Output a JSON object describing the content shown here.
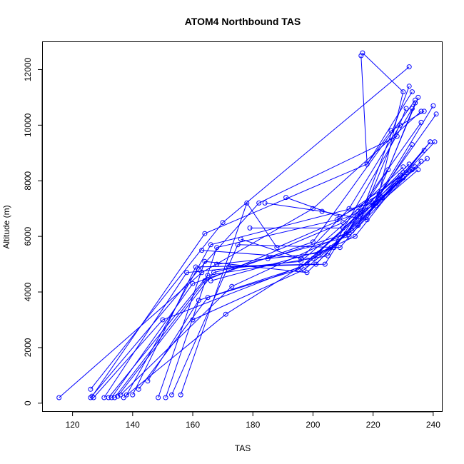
{
  "chart_data": {
    "type": "line",
    "title": "ATOM4 Northbound TAS",
    "xlabel": "TAS",
    "ylabel": "Altitude (m)",
    "xlim": [
      110,
      243
    ],
    "ylim": [
      -300,
      13000
    ],
    "xticks": [
      120,
      140,
      160,
      180,
      200,
      220,
      240
    ],
    "yticks": [
      0,
      2000,
      4000,
      6000,
      8000,
      10000,
      12000
    ],
    "grid": false,
    "legend": "none",
    "markers": "open circles connected by lines",
    "color": "#0000ff",
    "series": [
      {
        "x": [
          115.5,
          163,
          200,
          236
        ],
        "y": [
          200,
          4700,
          7000,
          10500
        ]
      },
      {
        "x": [
          126,
          162,
          182,
          228
        ],
        "y": [
          200,
          4800,
          7200,
          9600
        ]
      },
      {
        "x": [
          126.5,
          164,
          218,
          233
        ],
        "y": [
          250,
          6100,
          8600,
          11200
        ]
      },
      {
        "x": [
          127,
          150,
          198,
          232
        ],
        "y": [
          200,
          3000,
          5000,
          8600
        ]
      },
      {
        "x": [
          126,
          170,
          232
        ],
        "y": [
          500,
          6500,
          12100
        ]
      },
      {
        "x": [
          130.5,
          158,
          196,
          230
        ],
        "y": [
          200,
          4700,
          5100,
          8300
        ]
      },
      {
        "x": [
          132,
          165,
          205,
          233
        ],
        "y": [
          200,
          4600,
          5300,
          10600
        ]
      },
      {
        "x": [
          133,
          160,
          200,
          234
        ],
        "y": [
          200,
          4300,
          5800,
          10900
        ]
      },
      {
        "x": [
          134,
          164,
          210,
          230
        ],
        "y": [
          200,
          4400,
          6500,
          8500
        ]
      },
      {
        "x": [
          135,
          167,
          212,
          236
        ],
        "y": [
          250,
          4700,
          6000,
          8700
        ]
      },
      {
        "x": [
          136,
          173,
          213,
          237
        ],
        "y": [
          300,
          4200,
          6200,
          9100
        ]
      },
      {
        "x": [
          137,
          171,
          206,
          228
        ],
        "y": [
          200,
          3200,
          5600,
          7900
        ]
      },
      {
        "x": [
          138,
          166,
          220,
          241
        ],
        "y": [
          300,
          5700,
          7200,
          10400
        ]
      },
      {
        "x": [
          148.5,
          164,
          198,
          233
        ],
        "y": [
          200,
          5100,
          4700,
          8400
        ]
      },
      {
        "x": [
          151,
          168,
          208,
          234
        ],
        "y": [
          200,
          5600,
          6600,
          8500
        ]
      },
      {
        "x": [
          153,
          175,
          209,
          239
        ],
        "y": [
          300,
          5700,
          5600,
          9400
        ]
      },
      {
        "x": [
          156,
          178,
          188,
          220,
          233
        ],
        "y": [
          300,
          7200,
          5600,
          7100,
          9300
        ]
      },
      {
        "x": [
          140,
          161,
          201,
          229
        ],
        "y": [
          300,
          4900,
          5000,
          8200
        ]
      },
      {
        "x": [
          142,
          165,
          195,
          230
        ],
        "y": [
          500,
          3800,
          4800,
          8100
        ]
      },
      {
        "x": [
          145,
          162,
          196,
          231
        ],
        "y": [
          800,
          3700,
          4900,
          8300
        ]
      },
      {
        "x": [
          216.5,
          230,
          221,
          235
        ],
        "y": [
          12600,
          11200,
          7100,
          8400
        ]
      },
      {
        "x": [
          216,
          218,
          226,
          237
        ],
        "y": [
          12500,
          8600,
          9800,
          10500
        ]
      },
      {
        "x": [
          184,
          203,
          218,
          235
        ],
        "y": [
          7200,
          6900,
          6600,
          11000
        ]
      },
      {
        "x": [
          191,
          209,
          222,
          240
        ],
        "y": [
          7400,
          6700,
          7500,
          10700
        ]
      },
      {
        "x": [
          179,
          210,
          223,
          238
        ],
        "y": [
          6300,
          6300,
          7400,
          8800
        ]
      },
      {
        "x": [
          185,
          211,
          225,
          234
        ],
        "y": [
          5200,
          6100,
          8400,
          10800
        ]
      },
      {
        "x": [
          163,
          200,
          213,
          240.5
        ],
        "y": [
          5500,
          5200,
          6200,
          9400
        ]
      },
      {
        "x": [
          166,
          207,
          216,
          232
        ],
        "y": [
          4400,
          5600,
          6800,
          11400
        ]
      },
      {
        "x": [
          168,
          202,
          214,
          239
        ],
        "y": [
          5000,
          5400,
          6000,
          9400
        ]
      },
      {
        "x": [
          172,
          204,
          215,
          236
        ],
        "y": [
          4900,
          5000,
          6900,
          10100
        ]
      },
      {
        "x": [
          176,
          196,
          212,
          229
        ],
        "y": [
          5900,
          5200,
          7000,
          10000
        ]
      },
      {
        "x": [
          160,
          197,
          215,
          231
        ],
        "y": [
          3000,
          4800,
          6400,
          10600
        ]
      }
    ]
  }
}
